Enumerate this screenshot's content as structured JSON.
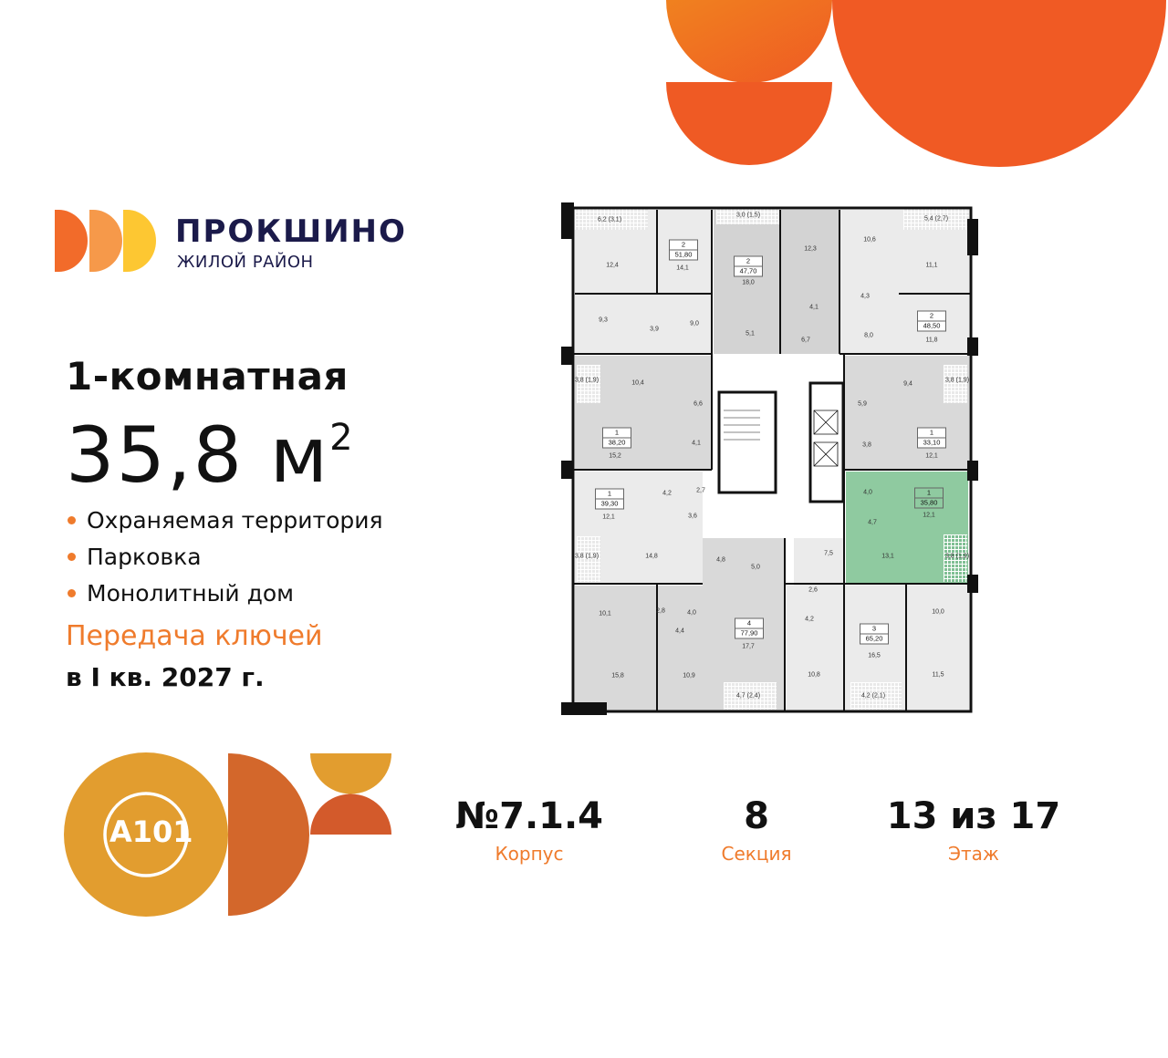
{
  "brand": {
    "name": "ПРОКШИНО",
    "subtitle": "ЖИЛОЙ РАЙОН",
    "colors": [
      "#f26b2a",
      "#f6994a",
      "#fdc732"
    ],
    "text_color": "#1b1a4a"
  },
  "apartment": {
    "type": "1-комнатная",
    "area": "35,8 м",
    "area_sup": "2"
  },
  "features": [
    "Охраняемая территория",
    "Парковка",
    "Монолитный дом"
  ],
  "handover": {
    "label": "Передача ключей",
    "date": "в I кв. 2027 г."
  },
  "stats": [
    {
      "value": "№7.1.4",
      "label": "Корпус"
    },
    {
      "value": "8",
      "label": "Секция"
    },
    {
      "value": "13 из 17",
      "label": "Этаж"
    }
  ],
  "developer_logo": {
    "text": "A101",
    "colors": [
      "#e29d2f",
      "#d3672b",
      "#d35a2b"
    ]
  },
  "accent_color": "#ef7b2c",
  "highlight_color": "#8fcaa0",
  "floorplan": {
    "apartments": [
      {
        "rooms": "2",
        "area": "51,80"
      },
      {
        "rooms": "2",
        "area": "47,70"
      },
      {
        "rooms": "2",
        "area": "48,50"
      },
      {
        "rooms": "1",
        "area": "38,20"
      },
      {
        "rooms": "1",
        "area": "33,10"
      },
      {
        "rooms": "1",
        "area": "39,30"
      },
      {
        "rooms": "1",
        "area": "35,80"
      },
      {
        "rooms": "4",
        "area": "77,90"
      },
      {
        "rooms": "3",
        "area": "65,20"
      }
    ],
    "room_labels": [
      "6,2 (3,1)",
      "12,4",
      "14,1",
      "9,3",
      "3,9",
      "9,0",
      "3,0 (1,5)",
      "18,0",
      "5,1",
      "12,3",
      "4,1",
      "6,7",
      "10,6",
      "4,3",
      "8,0",
      "5,4 (2,7)",
      "11,1",
      "11,8",
      "3,8 (1,9)",
      "10,4",
      "6,6",
      "15,2",
      "4,1",
      "9,4",
      "3,8 (1,9)",
      "5,9",
      "3,8",
      "12,1",
      "12,1",
      "4,2",
      "2,7",
      "3,6",
      "3,8 (1,9)",
      "14,8",
      "4,8",
      "5,0",
      "10,1",
      "2,8",
      "4,0",
      "4,4",
      "17,7",
      "15,8",
      "10,9",
      "4,7 (2,4)",
      "4,0",
      "12,1",
      "4,7",
      "13,1",
      "3,8 (1,9)",
      "7,5",
      "2,6",
      "4,2",
      "10,0",
      "16,5",
      "10,8",
      "11,5",
      "4,2 (2,1)"
    ]
  }
}
